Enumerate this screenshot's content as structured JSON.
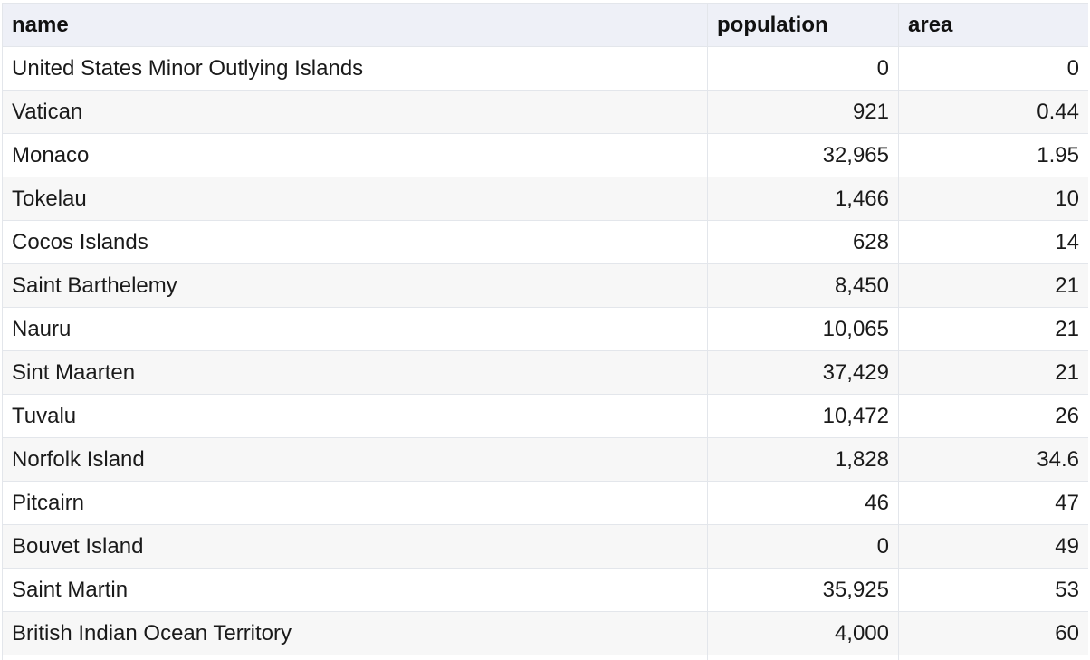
{
  "table": {
    "columns": [
      "name",
      "population",
      "area"
    ],
    "rows": [
      {
        "name": "United States Minor Outlying Islands",
        "population": "0",
        "area": "0"
      },
      {
        "name": "Vatican",
        "population": "921",
        "area": "0.44"
      },
      {
        "name": "Monaco",
        "population": "32,965",
        "area": "1.95"
      },
      {
        "name": "Tokelau",
        "population": "1,466",
        "area": "10"
      },
      {
        "name": "Cocos Islands",
        "population": "628",
        "area": "14"
      },
      {
        "name": "Saint Barthelemy",
        "population": "8,450",
        "area": "21"
      },
      {
        "name": "Nauru",
        "population": "10,065",
        "area": "21"
      },
      {
        "name": "Sint Maarten",
        "population": "37,429",
        "area": "21"
      },
      {
        "name": "Tuvalu",
        "population": "10,472",
        "area": "26"
      },
      {
        "name": "Norfolk Island",
        "population": "1,828",
        "area": "34.6"
      },
      {
        "name": "Pitcairn",
        "population": "46",
        "area": "47"
      },
      {
        "name": "Bouvet Island",
        "population": "0",
        "area": "49"
      },
      {
        "name": "Saint Martin",
        "population": "35,925",
        "area": "53"
      },
      {
        "name": "British Indian Ocean Territory",
        "population": "4,000",
        "area": "60"
      }
    ]
  }
}
